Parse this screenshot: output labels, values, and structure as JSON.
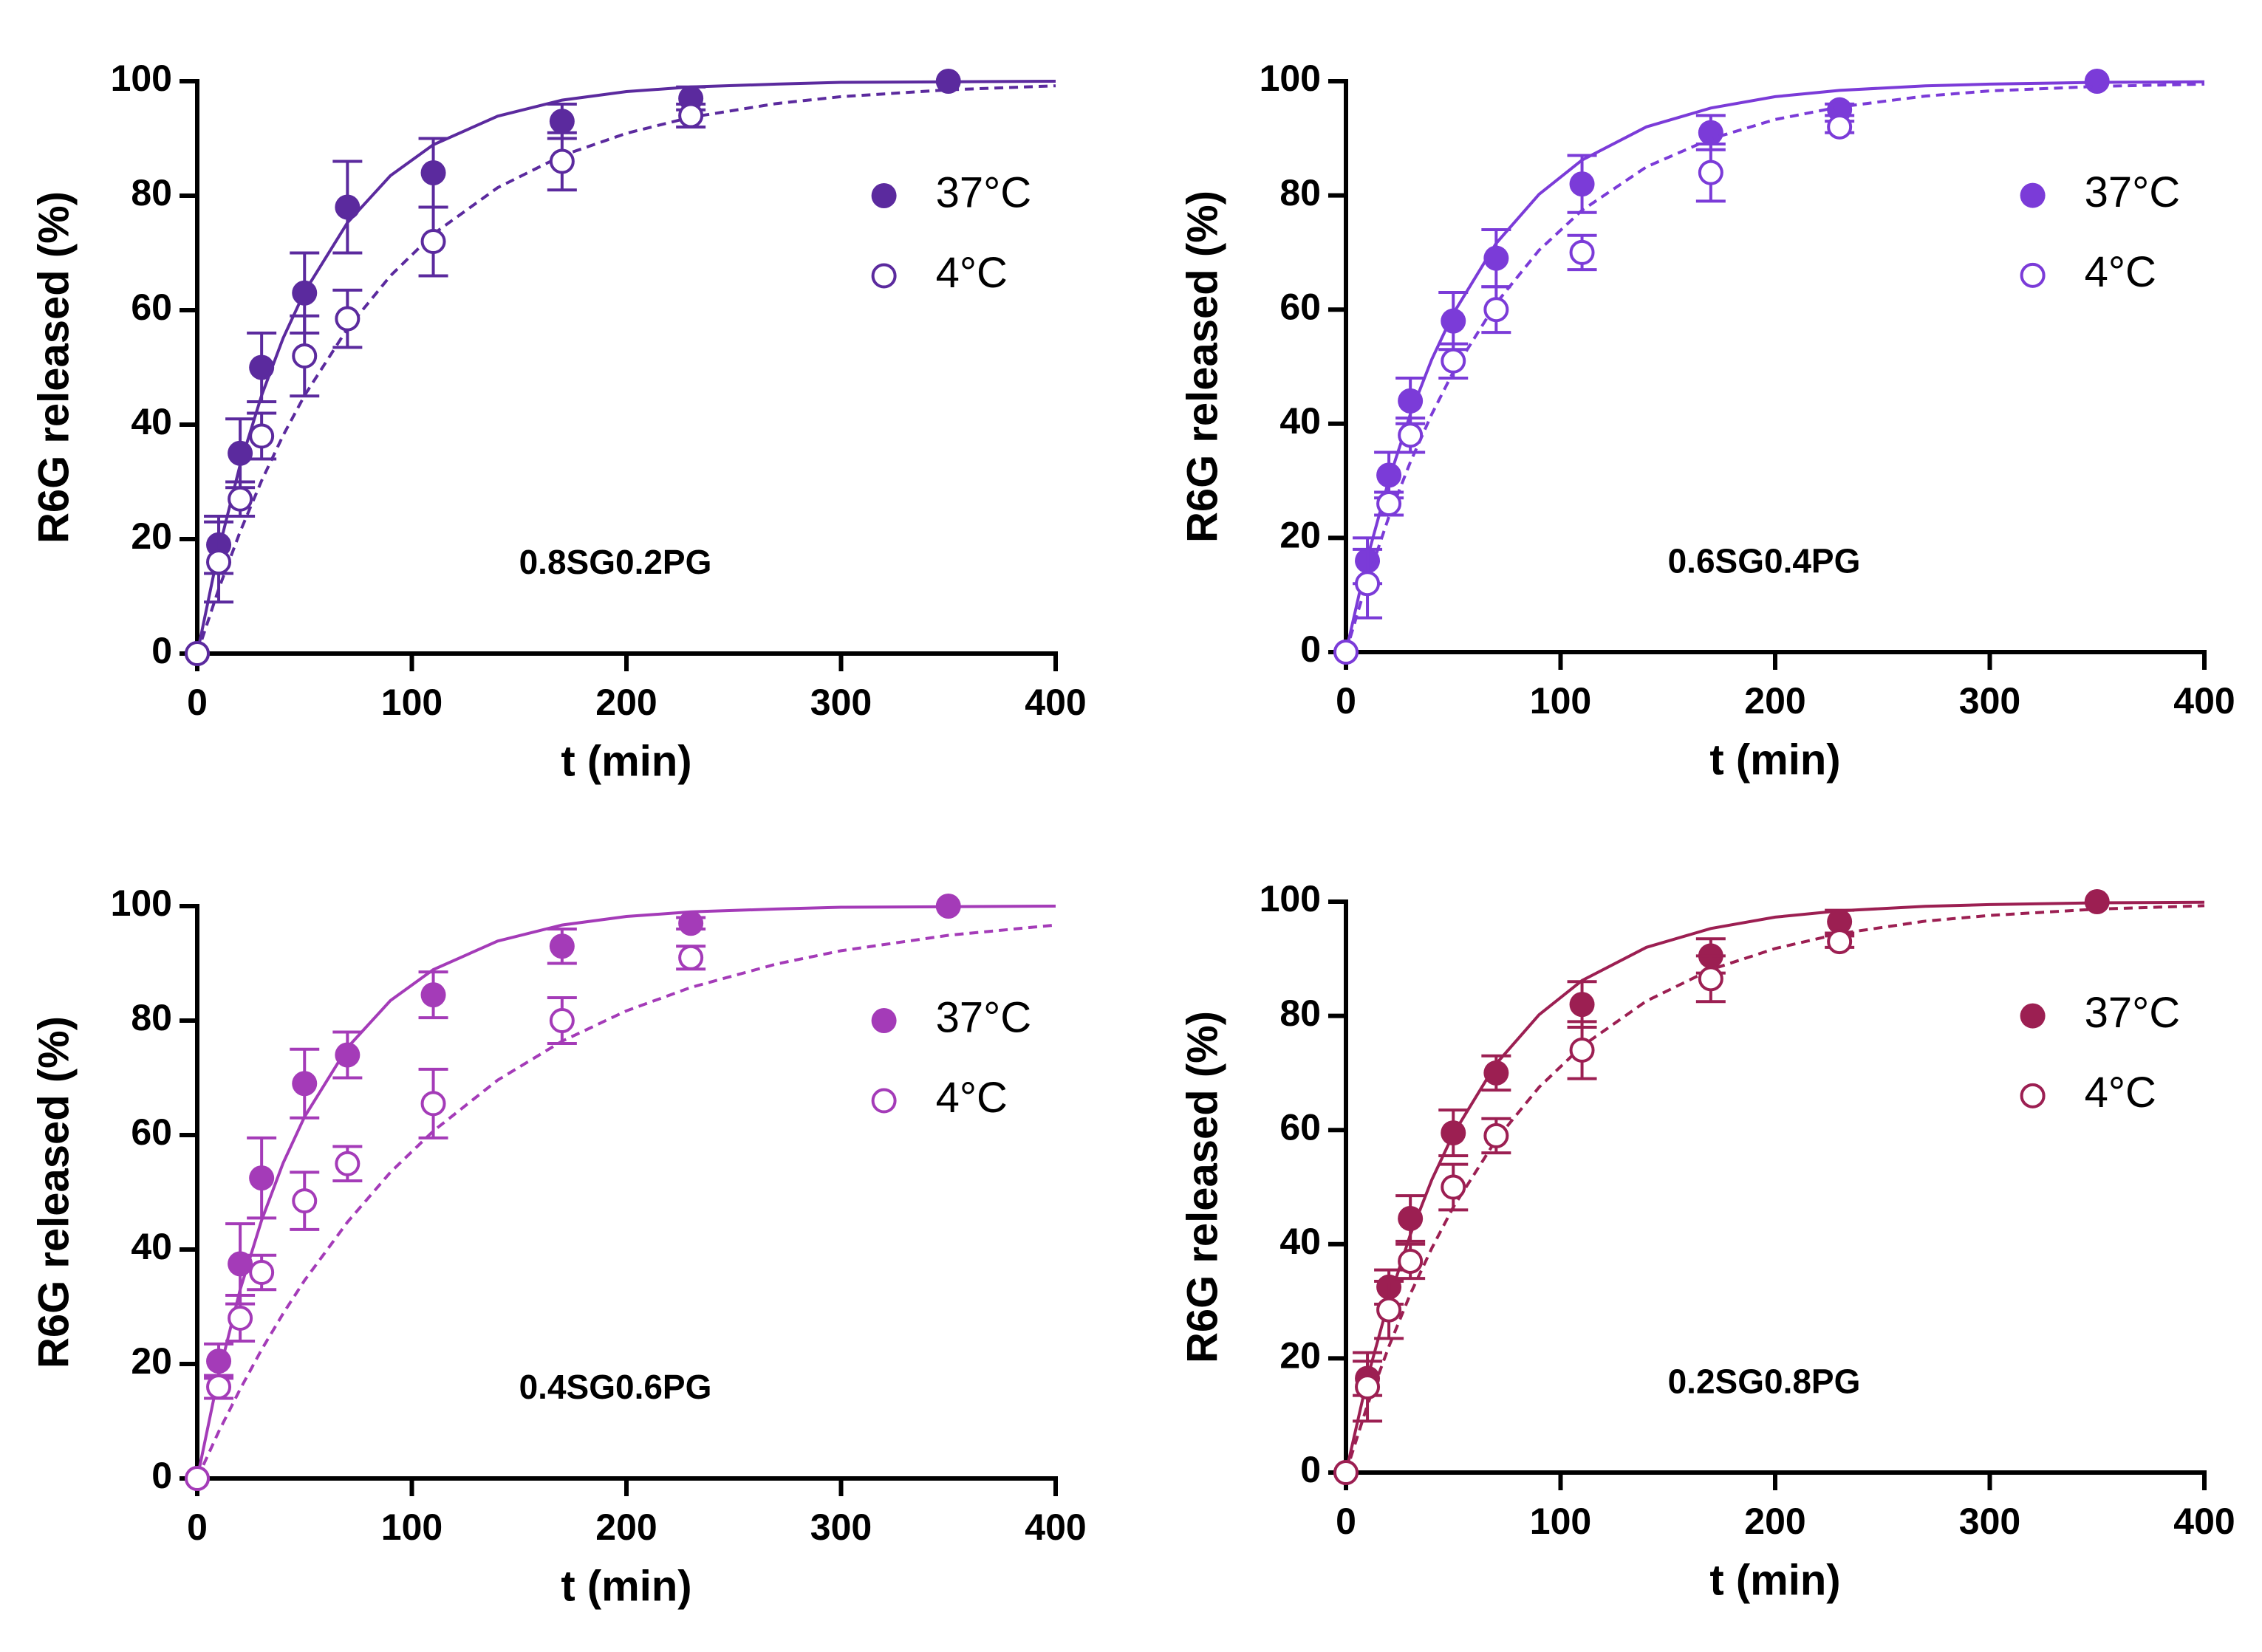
{
  "chart_data": [
    {
      "type": "scatter",
      "annotation": "0.8SG0.2PG",
      "xlabel": "t (min)",
      "ylabel": "R6G released (%)",
      "xlim": [
        0,
        400
      ],
      "ylim": [
        0,
        100
      ],
      "xticks": [
        0,
        100,
        200,
        300,
        400
      ],
      "yticks": [
        0,
        20,
        40,
        60,
        80,
        100
      ],
      "legend": "upper right",
      "x": [
        0,
        10,
        20,
        30,
        50,
        70,
        110,
        170,
        230,
        350
      ],
      "series": [
        {
          "name": "37°C",
          "color": "#5b2a9e",
          "filled": true,
          "values": [
            0,
            19,
            35,
            50,
            63,
            78,
            84,
            93,
            97,
            100
          ],
          "errors": [
            0,
            5,
            6,
            6,
            7,
            8,
            6,
            3,
            2,
            0
          ],
          "fit": {
            "linestyle": "solid",
            "x": [
              0,
              10,
              20,
              30,
              40,
              50,
              70,
              90,
              110,
              140,
              170,
              200,
              230,
              270,
              300,
              350,
              400
            ],
            "values": [
              0,
              18.1,
              33,
              45.1,
              55.1,
              63.2,
              75.3,
              83.5,
              88.9,
              93.9,
              96.7,
              98.2,
              99,
              99.5,
              99.8,
              99.9,
              100
            ]
          }
        },
        {
          "name": "4°C",
          "color": "#5b2a9e",
          "filled": false,
          "values": [
            0,
            16,
            27,
            38,
            52,
            58.5,
            72,
            86,
            94,
            null
          ],
          "errors": [
            0,
            7,
            3,
            4,
            7,
            5,
            6,
            5,
            2,
            null
          ],
          "fit": {
            "linestyle": "dashed",
            "x": [
              0,
              10,
              20,
              30,
              40,
              50,
              70,
              90,
              110,
              140,
              170,
              200,
              230,
              270,
              300,
              350,
              400
            ],
            "values": [
              0,
              11.3,
              21.3,
              30.2,
              38.1,
              45.1,
              56.8,
              66,
              73.3,
              81.4,
              87,
              90.9,
              93.7,
              96.1,
              97.3,
              98.5,
              99.2
            ]
          }
        }
      ]
    },
    {
      "type": "scatter",
      "annotation": "0.6SG0.4PG",
      "xlabel": "t (min)",
      "ylabel": "R6G released (%)",
      "xlim": [
        0,
        400
      ],
      "ylim": [
        0,
        100
      ],
      "xticks": [
        0,
        100,
        200,
        300,
        400
      ],
      "yticks": [
        0,
        20,
        40,
        60,
        80,
        100
      ],
      "legend": "upper right",
      "x": [
        0,
        10,
        20,
        30,
        50,
        70,
        110,
        170,
        230,
        350
      ],
      "series": [
        {
          "name": "37°C",
          "color": "#7b3bd8",
          "filled": true,
          "values": [
            0,
            16,
            31,
            44,
            58,
            69,
            82,
            91,
            95,
            100
          ],
          "errors": [
            0,
            4,
            4,
            4,
            5,
            5,
            5,
            3,
            1,
            0
          ],
          "fit": {
            "linestyle": "solid",
            "x": [
              0,
              10,
              20,
              30,
              40,
              50,
              70,
              90,
              110,
              140,
              170,
              200,
              230,
              270,
              300,
              350,
              400
            ],
            "values": [
              0,
              16.5,
              30.2,
              41.7,
              51.3,
              59.3,
              71.6,
              80.2,
              86.2,
              92,
              95.3,
              97.3,
              98.4,
              99.2,
              99.5,
              99.8,
              99.9
            ]
          }
        },
        {
          "name": "4°C",
          "color": "#7b3bd8",
          "filled": false,
          "values": [
            0,
            12,
            26,
            38,
            51,
            60,
            70,
            84,
            92,
            null
          ],
          "errors": [
            0,
            6,
            2,
            3,
            3,
            4,
            3,
            5,
            1,
            null
          ],
          "fit": {
            "linestyle": "dashed",
            "x": [
              0,
              10,
              20,
              30,
              40,
              50,
              70,
              90,
              110,
              140,
              170,
              200,
              230,
              270,
              300,
              350,
              400
            ],
            "values": [
              0,
              12.6,
              23.7,
              33.3,
              41.7,
              49.1,
              61.1,
              70.4,
              77.4,
              85,
              89.9,
              93.3,
              95.5,
              97.4,
              98.3,
              99.1,
              99.5
            ]
          }
        }
      ]
    },
    {
      "type": "scatter",
      "annotation": "0.4SG0.6PG",
      "xlabel": "t (min)",
      "ylabel": "R6G released (%)",
      "xlim": [
        0,
        400
      ],
      "ylim": [
        0,
        100
      ],
      "xticks": [
        0,
        100,
        200,
        300,
        400
      ],
      "yticks": [
        0,
        20,
        40,
        60,
        80,
        100
      ],
      "legend": "upper right",
      "x": [
        0,
        10,
        20,
        30,
        50,
        70,
        110,
        170,
        230,
        350
      ],
      "series": [
        {
          "name": "37°C",
          "color": "#a43bb8",
          "filled": true,
          "values": [
            0,
            20.5,
            37.5,
            52.5,
            69,
            74,
            84.5,
            93,
            97,
            100
          ],
          "errors": [
            0,
            3,
            7,
            7,
            6,
            4,
            4,
            3,
            1,
            0
          ],
          "fit": {
            "linestyle": "solid",
            "x": [
              0,
              10,
              20,
              30,
              40,
              50,
              70,
              90,
              110,
              140,
              170,
              200,
              230,
              270,
              300,
              350,
              400
            ],
            "values": [
              0,
              18.1,
              33,
              45.1,
              55.1,
              63.2,
              75.3,
              83.5,
              88.9,
              93.9,
              96.7,
              98.2,
              99,
              99.5,
              99.8,
              99.9,
              100
            ]
          }
        },
        {
          "name": "4°C",
          "color": "#a43bb8",
          "filled": false,
          "values": [
            0,
            16,
            28,
            36,
            48.5,
            55,
            65.5,
            80,
            91,
            null
          ],
          "errors": [
            0,
            2,
            4,
            3,
            5,
            3,
            6,
            4,
            2,
            null
          ],
          "fit": {
            "linestyle": "dashed",
            "x": [
              0,
              10,
              20,
              30,
              40,
              50,
              70,
              90,
              110,
              140,
              170,
              200,
              230,
              270,
              300,
              350,
              400
            ],
            "values": [
              0,
              8.2,
              15.6,
              22.5,
              28.8,
              34.6,
              44.8,
              53.5,
              60.7,
              69.6,
              76.4,
              81.7,
              85.8,
              89.9,
              92.2,
              94.9,
              96.7
            ]
          }
        }
      ]
    },
    {
      "type": "scatter",
      "annotation": "0.2SG0.8PG",
      "xlabel": "t (min)",
      "ylabel": "R6G released (%)",
      "xlim": [
        0,
        400
      ],
      "ylim": [
        0,
        100
      ],
      "xticks": [
        0,
        100,
        200,
        300,
        400
      ],
      "yticks": [
        0,
        20,
        40,
        60,
        80,
        100
      ],
      "legend": "upper right",
      "x": [
        0,
        10,
        20,
        30,
        50,
        70,
        110,
        170,
        230,
        350
      ],
      "series": [
        {
          "name": "37°C",
          "color": "#9c1f52",
          "filled": true,
          "values": [
            0,
            16.5,
            32.5,
            44.5,
            59.5,
            70,
            82,
            90.5,
            96.5,
            100
          ],
          "errors": [
            0,
            3,
            3,
            4,
            4,
            3,
            4,
            3,
            2,
            0
          ],
          "fit": {
            "linestyle": "solid",
            "x": [
              0,
              10,
              20,
              30,
              40,
              50,
              70,
              90,
              110,
              140,
              170,
              200,
              230,
              270,
              300,
              350,
              400
            ],
            "values": [
              0,
              16.5,
              30.2,
              41.7,
              51.3,
              59.3,
              71.6,
              80.2,
              86.2,
              92,
              95.3,
              97.3,
              98.4,
              99.2,
              99.5,
              99.8,
              99.9
            ]
          }
        },
        {
          "name": "4°C",
          "color": "#9c1f52",
          "filled": false,
          "values": [
            0,
            15,
            28.5,
            37,
            50,
            59,
            74,
            86.5,
            93,
            null
          ],
          "errors": [
            0,
            6,
            5,
            3,
            4,
            3,
            5,
            4,
            1,
            null
          ],
          "fit": {
            "linestyle": "dashed",
            "x": [
              0,
              10,
              20,
              30,
              40,
              50,
              70,
              90,
              110,
              140,
              170,
              200,
              230,
              270,
              300,
              350,
              400
            ],
            "values": [
              0,
              11.8,
              22.1,
              31.3,
              39.3,
              46.5,
              58.3,
              67.5,
              74.7,
              82.6,
              88.1,
              91.8,
              94.4,
              96.6,
              97.6,
              98.7,
              99.3
            ]
          }
        }
      ]
    }
  ]
}
